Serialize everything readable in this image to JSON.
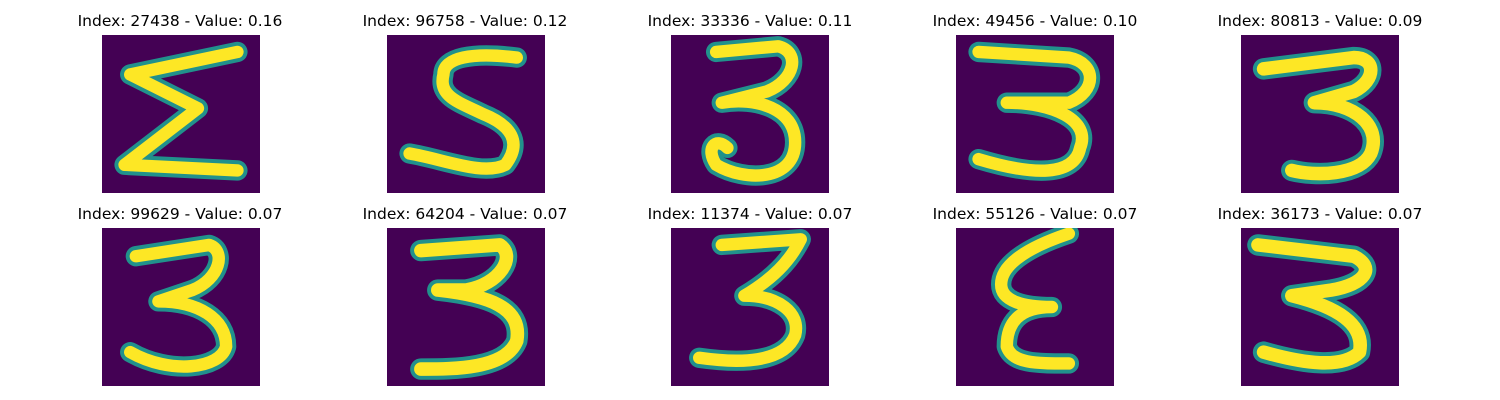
{
  "chart_data": {
    "type": "image-grid",
    "colormap": "viridis",
    "colors": {
      "background": "#440154",
      "mid": "#21918c",
      "high": "#fde725"
    },
    "rows": 2,
    "cols": 5,
    "panels": [
      {
        "index": 27438,
        "value": 0.16,
        "title": "Index: 27438 - Value: 0.16",
        "digit_icon": "sigma-shape"
      },
      {
        "index": 96758,
        "value": 0.12,
        "title": "Index: 96758 - Value: 0.12",
        "digit_icon": "digit-5"
      },
      {
        "index": 33336,
        "value": 0.11,
        "title": "Index: 33336 - Value: 0.11",
        "digit_icon": "digit-3"
      },
      {
        "index": 49456,
        "value": 0.1,
        "title": "Index: 49456 - Value: 0.10",
        "digit_icon": "digit-3"
      },
      {
        "index": 80813,
        "value": 0.09,
        "title": "Index: 80813 - Value: 0.09",
        "digit_icon": "digit-3"
      },
      {
        "index": 99629,
        "value": 0.07,
        "title": "Index: 99629 - Value: 0.07",
        "digit_icon": "digit-3"
      },
      {
        "index": 64204,
        "value": 0.07,
        "title": "Index: 64204 - Value: 0.07",
        "digit_icon": "digit-3"
      },
      {
        "index": 11374,
        "value": 0.07,
        "title": "Index: 11374 - Value: 0.07",
        "digit_icon": "digit-3"
      },
      {
        "index": 55126,
        "value": 0.07,
        "title": "Index: 55126 - Value: 0.07",
        "digit_icon": "epsilon-shape"
      },
      {
        "index": 36173,
        "value": 0.07,
        "title": "Index: 36173 - Value: 0.07",
        "digit_icon": "digit-3"
      }
    ]
  }
}
